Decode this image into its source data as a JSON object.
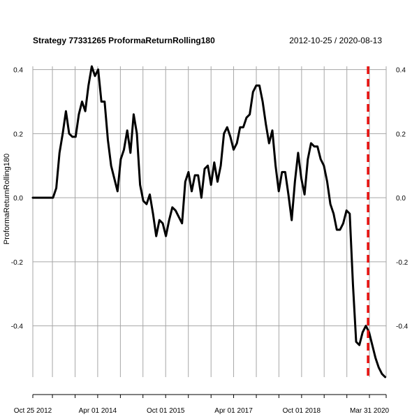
{
  "chart_data": {
    "type": "line",
    "title": "Strategy 77331265 ProformaReturnRolling180",
    "date_range": "2012-10-25 / 2020-08-13",
    "ylabel": "ProformaReturnRolling180",
    "xlabel": "",
    "x_start": "2012-10-25",
    "x_end": "2020-08-13",
    "ylim": [
      -0.56,
      0.41
    ],
    "yticks": [
      0.4,
      0.2,
      0.0,
      -0.2,
      -0.4
    ],
    "ytick_labels": [
      "0.4",
      "0.2",
      "0.0",
      "-0.2",
      "-0.4"
    ],
    "xticks": [
      {
        "date": "2012-10-25",
        "label": "Oct 25 2012"
      },
      {
        "date": "2014-04-01",
        "label": "Apr 01 2014"
      },
      {
        "date": "2015-10-01",
        "label": "Oct 01 2015"
      },
      {
        "date": "2017-04-01",
        "label": "Apr 01 2017"
      },
      {
        "date": "2018-10-01",
        "label": "Oct 01 2018"
      },
      {
        "date": "2020-03-31",
        "label": "Mar 31 2020"
      }
    ],
    "grid_dates": [
      "2012-10-25",
      "2013-04-01",
      "2013-10-01",
      "2014-04-01",
      "2014-10-01",
      "2015-04-01",
      "2015-10-01",
      "2016-04-01",
      "2016-10-01",
      "2017-04-01",
      "2017-10-01",
      "2018-04-01",
      "2018-10-01",
      "2019-04-01",
      "2019-10-01",
      "2020-03-31",
      "2020-08-13"
    ],
    "grid": true,
    "vline": {
      "date": "2020-03-20",
      "color": "#e8110f",
      "style": "dashed"
    },
    "line_color": "#000000",
    "series": [
      {
        "values": [
          [
            "2012-10-25",
            0.0
          ],
          [
            "2013-04-06",
            0.0
          ],
          [
            "2013-05-02",
            0.03
          ],
          [
            "2013-05-28",
            0.14
          ],
          [
            "2013-06-23",
            0.2
          ],
          [
            "2013-07-19",
            0.27
          ],
          [
            "2013-08-14",
            0.2
          ],
          [
            "2013-09-09",
            0.19
          ],
          [
            "2013-10-05",
            0.19
          ],
          [
            "2013-10-31",
            0.26
          ],
          [
            "2013-11-26",
            0.3
          ],
          [
            "2013-12-22",
            0.27
          ],
          [
            "2014-01-17",
            0.35
          ],
          [
            "2014-02-12",
            0.41
          ],
          [
            "2014-03-10",
            0.38
          ],
          [
            "2014-04-05",
            0.4
          ],
          [
            "2014-05-01",
            0.3
          ],
          [
            "2014-05-27",
            0.3
          ],
          [
            "2014-06-22",
            0.18
          ],
          [
            "2014-07-18",
            0.1
          ],
          [
            "2014-08-13",
            0.06
          ],
          [
            "2014-09-08",
            0.02
          ],
          [
            "2014-10-04",
            0.12
          ],
          [
            "2014-10-30",
            0.15
          ],
          [
            "2014-11-25",
            0.21
          ],
          [
            "2014-12-21",
            0.14
          ],
          [
            "2015-01-16",
            0.26
          ],
          [
            "2015-02-11",
            0.2
          ],
          [
            "2015-03-09",
            0.04
          ],
          [
            "2015-04-04",
            -0.01
          ],
          [
            "2015-04-30",
            -0.02
          ],
          [
            "2015-05-26",
            0.01
          ],
          [
            "2015-06-21",
            -0.05
          ],
          [
            "2015-07-17",
            -0.12
          ],
          [
            "2015-08-12",
            -0.07
          ],
          [
            "2015-09-07",
            -0.08
          ],
          [
            "2015-10-03",
            -0.12
          ],
          [
            "2015-10-29",
            -0.07
          ],
          [
            "2015-11-24",
            -0.03
          ],
          [
            "2015-12-20",
            -0.04
          ],
          [
            "2016-01-15",
            -0.06
          ],
          [
            "2016-02-10",
            -0.08
          ],
          [
            "2016-03-07",
            0.05
          ],
          [
            "2016-04-02",
            0.08
          ],
          [
            "2016-04-28",
            0.02
          ],
          [
            "2016-05-24",
            0.07
          ],
          [
            "2016-06-19",
            0.07
          ],
          [
            "2016-07-15",
            0.0
          ],
          [
            "2016-08-10",
            0.09
          ],
          [
            "2016-09-05",
            0.1
          ],
          [
            "2016-10-01",
            0.04
          ],
          [
            "2016-10-27",
            0.11
          ],
          [
            "2016-11-22",
            0.05
          ],
          [
            "2016-12-18",
            0.1
          ],
          [
            "2017-01-13",
            0.2
          ],
          [
            "2017-02-08",
            0.22
          ],
          [
            "2017-03-06",
            0.19
          ],
          [
            "2017-04-01",
            0.15
          ],
          [
            "2017-04-27",
            0.17
          ],
          [
            "2017-05-23",
            0.22
          ],
          [
            "2017-06-18",
            0.22
          ],
          [
            "2017-07-14",
            0.25
          ],
          [
            "2017-08-09",
            0.26
          ],
          [
            "2017-09-04",
            0.33
          ],
          [
            "2017-09-30",
            0.35
          ],
          [
            "2017-10-26",
            0.35
          ],
          [
            "2017-11-21",
            0.3
          ],
          [
            "2017-12-17",
            0.23
          ],
          [
            "2018-01-12",
            0.17
          ],
          [
            "2018-02-07",
            0.21
          ],
          [
            "2018-03-05",
            0.1
          ],
          [
            "2018-03-31",
            0.02
          ],
          [
            "2018-04-26",
            0.08
          ],
          [
            "2018-05-22",
            0.08
          ],
          [
            "2018-06-17",
            0.01
          ],
          [
            "2018-07-13",
            -0.07
          ],
          [
            "2018-08-08",
            0.05
          ],
          [
            "2018-09-03",
            0.14
          ],
          [
            "2018-09-29",
            0.06
          ],
          [
            "2018-10-25",
            0.01
          ],
          [
            "2018-11-20",
            0.12
          ],
          [
            "2018-12-16",
            0.17
          ],
          [
            "2019-01-11",
            0.16
          ],
          [
            "2019-02-06",
            0.16
          ],
          [
            "2019-03-04",
            0.12
          ],
          [
            "2019-03-30",
            0.1
          ],
          [
            "2019-04-25",
            0.05
          ],
          [
            "2019-05-21",
            -0.02
          ],
          [
            "2019-06-16",
            -0.05
          ],
          [
            "2019-07-12",
            -0.1
          ],
          [
            "2019-08-07",
            -0.1
          ],
          [
            "2019-09-02",
            -0.08
          ],
          [
            "2019-09-28",
            -0.04
          ],
          [
            "2019-10-24",
            -0.05
          ],
          [
            "2019-11-19",
            -0.27
          ],
          [
            "2019-12-15",
            -0.45
          ],
          [
            "2020-01-10",
            -0.46
          ],
          [
            "2020-02-05",
            -0.42
          ],
          [
            "2020-03-02",
            -0.4
          ],
          [
            "2020-03-28",
            -0.42
          ],
          [
            "2020-04-23",
            -0.46
          ],
          [
            "2020-05-19",
            -0.5
          ],
          [
            "2020-06-14",
            -0.53
          ],
          [
            "2020-07-10",
            -0.55
          ],
          [
            "2020-08-05",
            -0.56
          ]
        ]
      }
    ]
  }
}
